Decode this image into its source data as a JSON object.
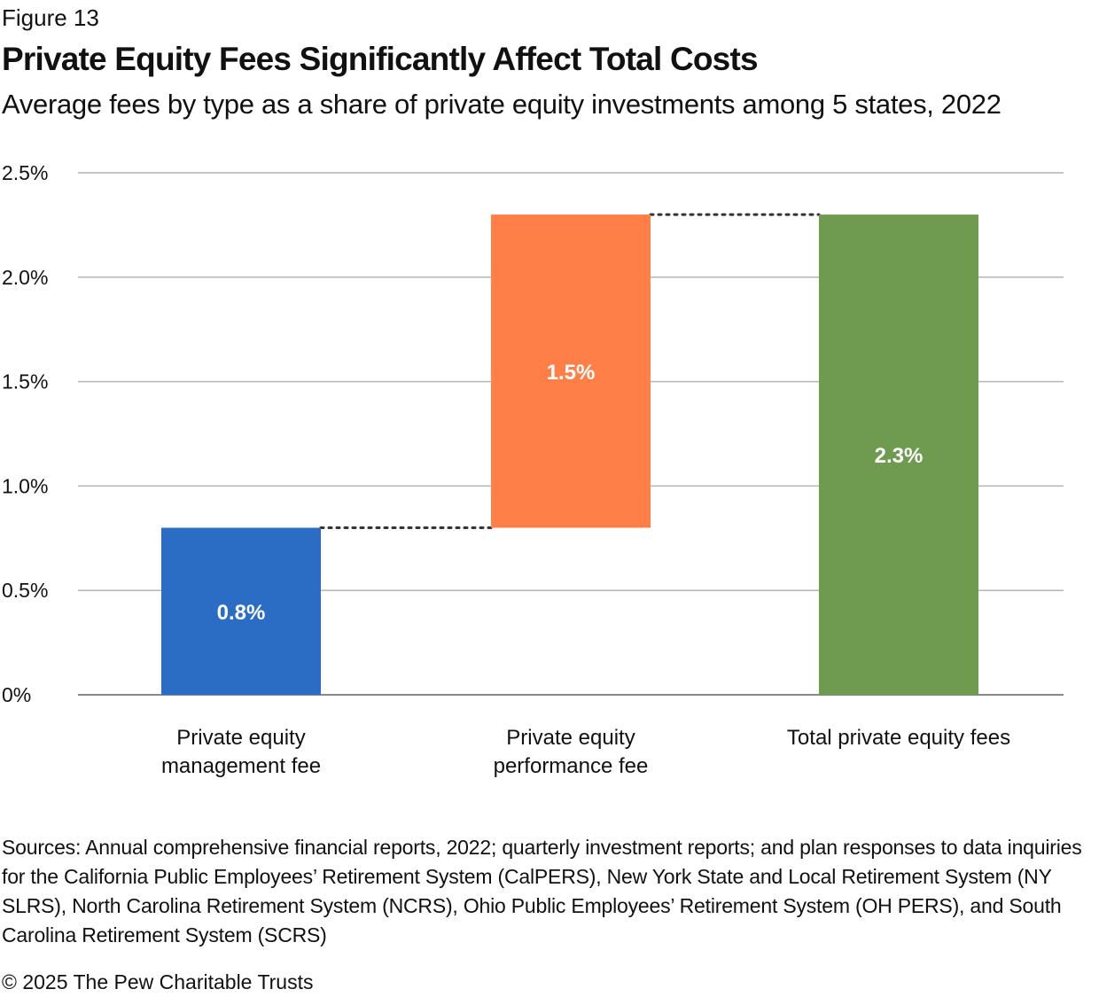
{
  "figure_label": "Figure 13",
  "title": "Private Equity Fees Significantly Affect Total Costs",
  "subtitle": "Average fees by type as a share of private equity investments among 5 states, 2022",
  "chart_data": {
    "type": "bar",
    "subtype": "waterfall",
    "categories": [
      [
        "Private equity",
        "management fee"
      ],
      [
        "Private equity",
        "performance fee"
      ],
      [
        "Total private equity fees"
      ]
    ],
    "bars": [
      {
        "start": 0.0,
        "end": 0.8,
        "value_label": "0.8%",
        "color": "#2B6CC4"
      },
      {
        "start": 0.8,
        "end": 2.3,
        "value_label": "1.5%",
        "color": "#FF7F47"
      },
      {
        "start": 0.0,
        "end": 2.3,
        "value_label": "2.3%",
        "color": "#6E9B50"
      }
    ],
    "connectors": [
      {
        "from": 0,
        "to": 1,
        "value": 0.8
      },
      {
        "from": 1,
        "to": 2,
        "value": 2.3
      }
    ],
    "ylim": [
      0,
      2.5
    ],
    "yticks": [
      0,
      0.5,
      1.0,
      1.5,
      2.0,
      2.5
    ],
    "ytick_labels": [
      "0%",
      "0.5%",
      "1.0%",
      "1.5%",
      "2.0%",
      "2.5%"
    ],
    "grid": true,
    "legend": "none",
    "xlabel": "",
    "ylabel": ""
  },
  "sources": "Sources: Annual comprehensive financial reports, 2022; quarterly investment reports; and plan responses to data inquiries for the California Public Employees’ Retirement System (CalPERS), New York State and Local Retirement System (NY SLRS), North Carolina Retirement System (NCRS), Ohio Public Employees’ Retirement System (OH PERS), and South Carolina Retirement System (SCRS)",
  "copyright": "© 2025 The Pew Charitable Trusts"
}
